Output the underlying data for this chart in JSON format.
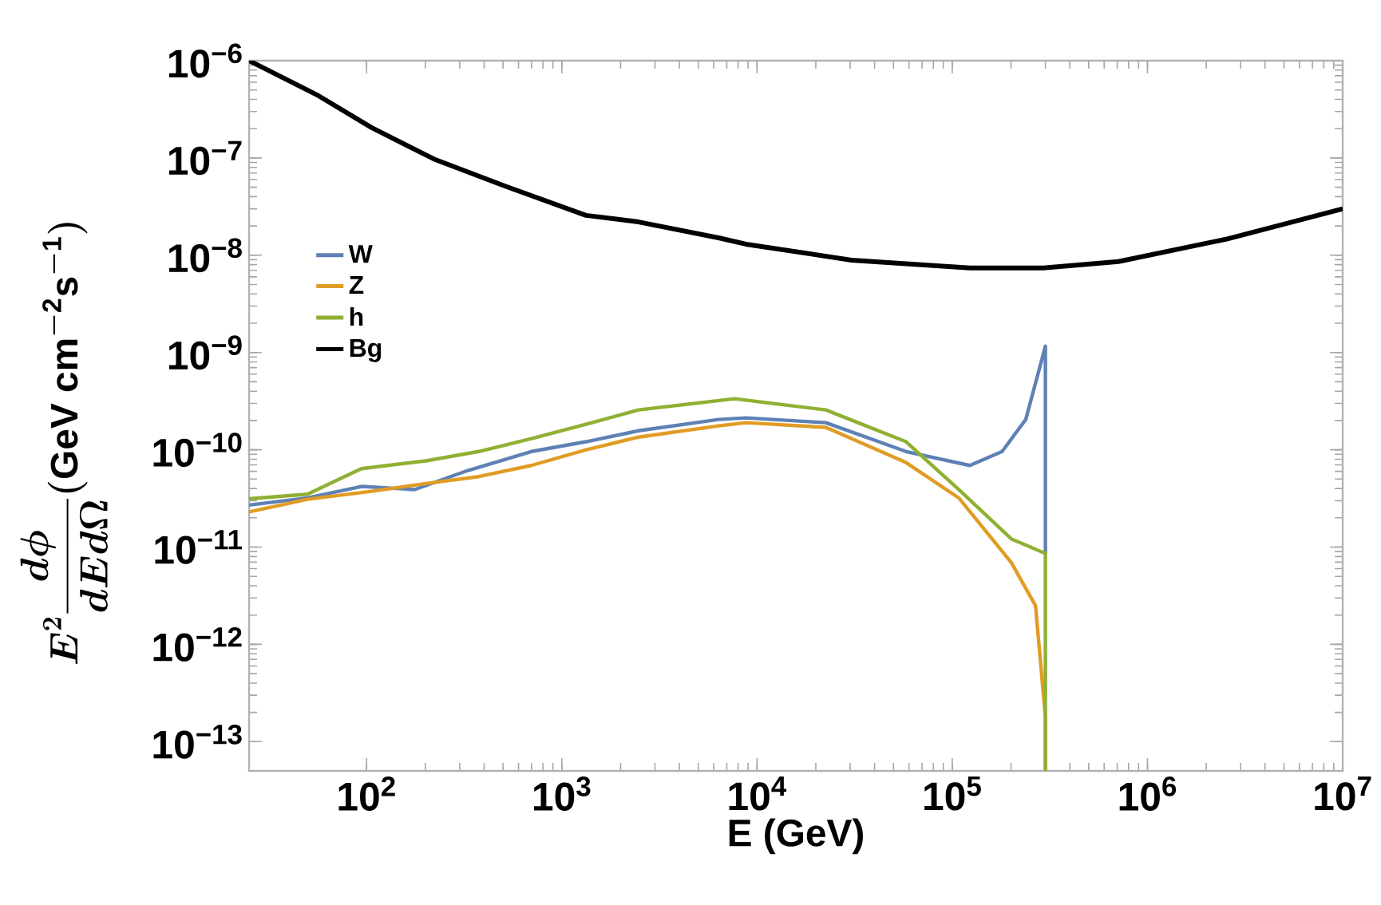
{
  "chart_data": {
    "type": "line",
    "xlabel": "E (GeV)",
    "ylabel": "E^{2}\\frac{d\\phi}{dEd\\Omega}(\\mathrm{GeV\\ cm^{-2}s^{-1}})",
    "log": "xy",
    "legend": "left",
    "xlim": [
      25,
      10000000
    ],
    "ylim": [
      5e-14,
      1e-06
    ],
    "xticks": [
      {
        "value": 100,
        "label": "10$^{2}$"
      },
      {
        "value": 1000,
        "label": "10$^{3}$"
      },
      {
        "value": 10000,
        "label": "10$^{4}$"
      },
      {
        "value": 100000,
        "label": "10$^{5}$"
      },
      {
        "value": 1000000,
        "label": "10$^{6}$"
      },
      {
        "value": 10000000,
        "label": "10$^{7}$"
      }
    ],
    "yticks": [
      {
        "value": 1e-13,
        "label": "10$^{−13}$"
      },
      {
        "value": 1e-12,
        "label": "10$^{−12}$"
      },
      {
        "value": 1e-11,
        "label": "10$^{−11}$"
      },
      {
        "value": 1e-10,
        "label": "10$^{−10}$"
      },
      {
        "value": 1e-09,
        "label": "10$^{−9}$"
      },
      {
        "value": 1e-08,
        "label": "10$^{−8}$"
      },
      {
        "value": 1e-07,
        "label": "10$^{−7}$"
      },
      {
        "value": 1e-06,
        "label": "10$^{−6}$"
      }
    ],
    "series": [
      {
        "name": "W",
        "color": "#5e81b5",
        "x": [
          25,
          49.8,
          94,
          176,
          328,
          698,
          1330,
          2470,
          6350,
          8770,
          22500,
          58000,
          123000,
          180000,
          238000,
          300000,
          300000
        ],
        "values": [
          2.7e-11,
          3.2e-11,
          4.2e-11,
          3.9e-11,
          6.1e-11,
          9.6e-11,
          1.21e-10,
          1.57e-10,
          2.05e-10,
          2.13e-10,
          1.9e-10,
          9.6e-11,
          6.9e-11,
          9.6e-11,
          2.05e-10,
          1.16e-09,
          8.6e-12
        ]
      },
      {
        "name": "Z",
        "color": "#e19c24",
        "x": [
          25,
          49.8,
          106,
          201,
          375,
          698,
          1330,
          2470,
          6350,
          8770,
          22500,
          58000,
          108000,
          201000,
          267000,
          300000,
          300000
        ],
        "values": [
          2.3e-11,
          3.1e-11,
          3.75e-11,
          4.5e-11,
          5.3e-11,
          6.9e-11,
          1e-10,
          1.35e-10,
          1.76e-10,
          1.9e-10,
          1.7e-10,
          7.4e-11,
          3.2e-11,
          6.9e-12,
          2.5e-12,
          1.8e-13,
          5e-14
        ]
      },
      {
        "name": "h",
        "color": "#8fb032",
        "x": [
          25,
          49.8,
          94,
          201,
          375,
          698,
          1330,
          2470,
          7670,
          22500,
          58000,
          108000,
          201000,
          300000,
          300000
        ],
        "values": [
          3.14e-11,
          3.5e-11,
          6.4e-11,
          7.7e-11,
          9.6e-11,
          1.3e-10,
          1.83e-10,
          2.57e-10,
          3.35e-10,
          2.57e-10,
          1.21e-10,
          3.9e-11,
          1.21e-11,
          8.6e-12,
          5e-14
        ]
      },
      {
        "name": "Bg",
        "color": "#000000",
        "x": [
          25,
          56.7,
          106,
          225,
          516,
          1330,
          2470,
          6350,
          8770,
          30500,
          123000,
          293000,
          710000,
          2520000,
          10000000
        ],
        "values": [
          1e-06,
          4.36e-07,
          2.05e-07,
          9.6e-08,
          5.1e-08,
          2.57e-08,
          2.2e-08,
          1.51e-08,
          1.3e-08,
          8.9e-09,
          7.4e-09,
          7.4e-09,
          8.6e-09,
          1.46e-08,
          3e-08
        ]
      }
    ]
  }
}
